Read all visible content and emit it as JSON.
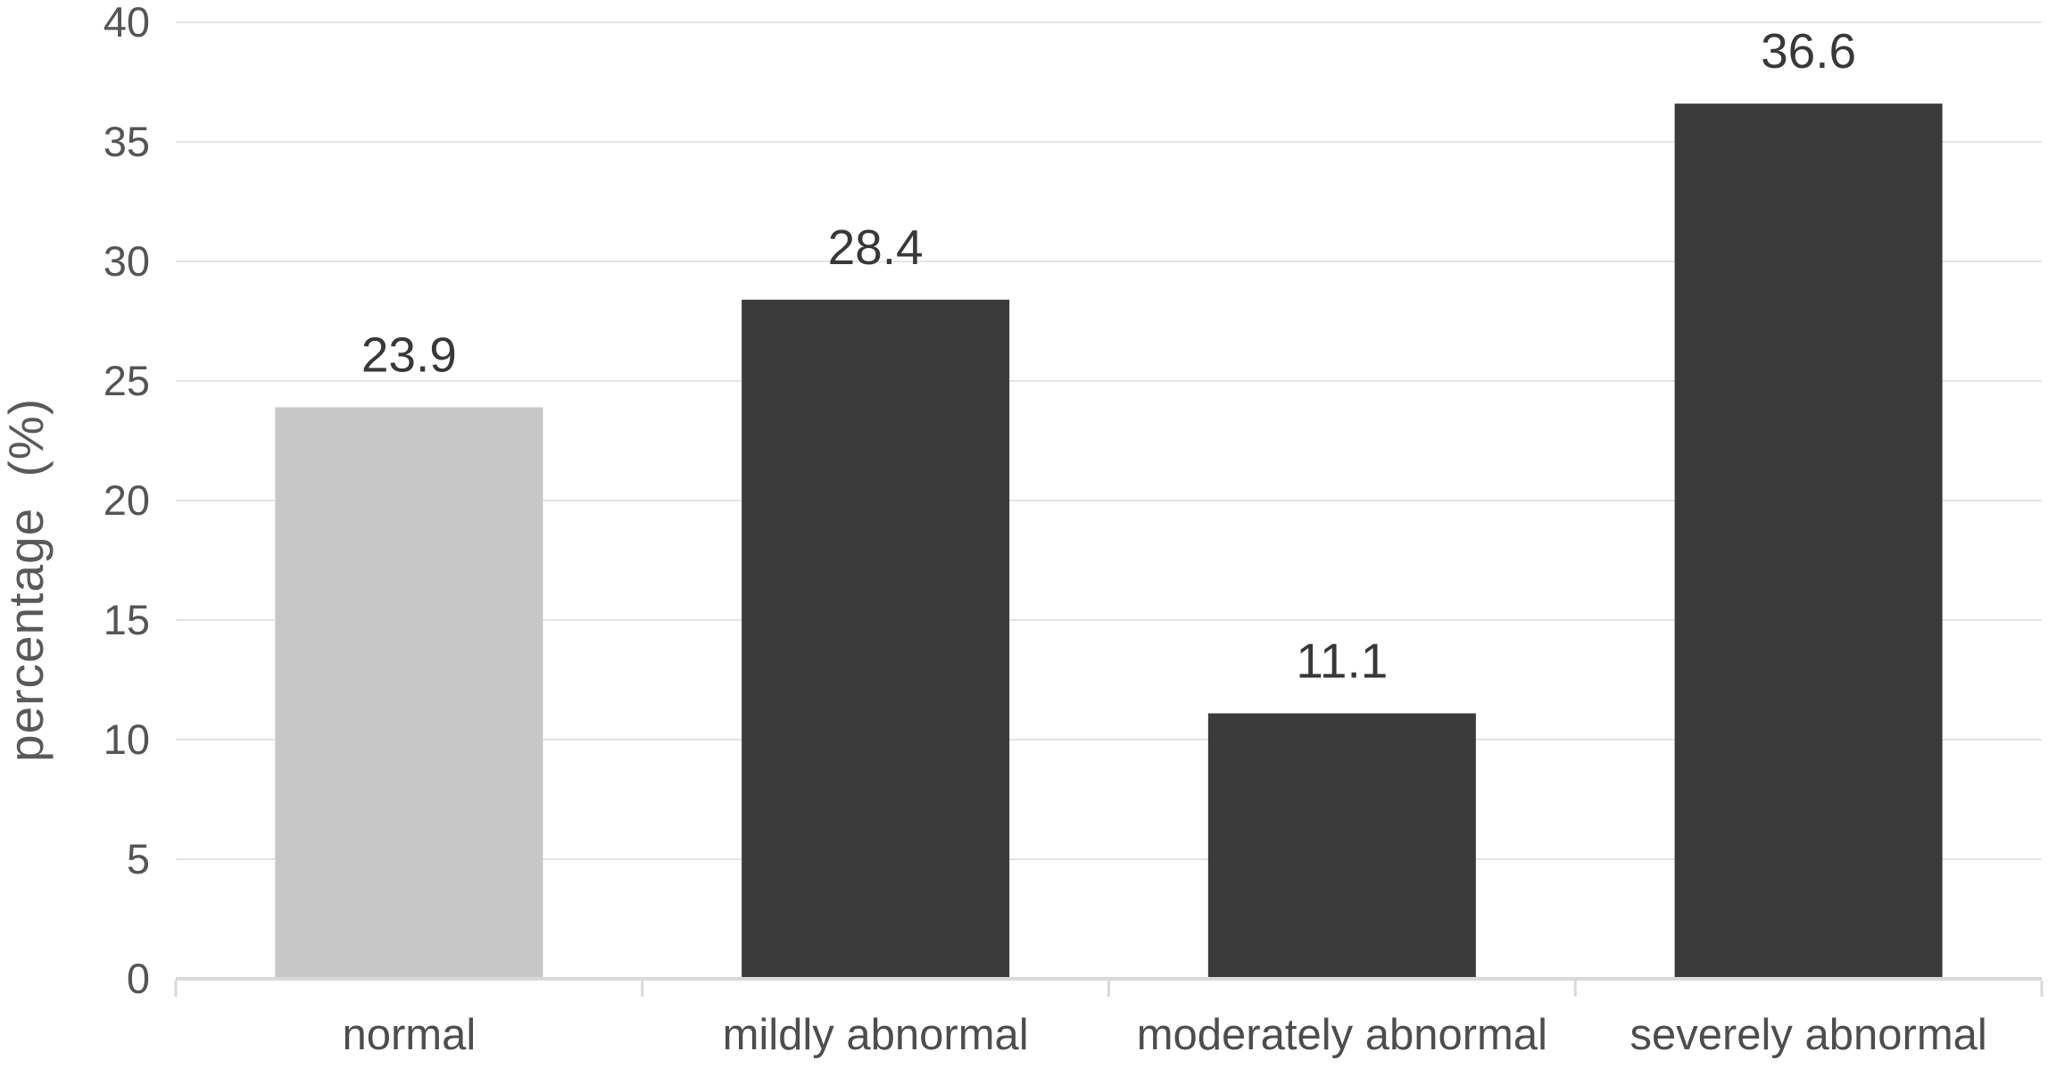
{
  "chart_data": {
    "type": "bar",
    "categories": [
      "normal",
      "mildly abnormal",
      "moderately abnormal",
      "severely abnormal"
    ],
    "values": [
      23.9,
      28.4,
      11.1,
      36.6
    ],
    "value_labels": [
      "23.9",
      "28.4",
      "11.1",
      "36.6"
    ],
    "title": "",
    "xlabel": "",
    "ylabel": "percentage (%)",
    "ylim": [
      0,
      40
    ],
    "yticks": [
      0,
      5,
      10,
      15,
      20,
      25,
      30,
      35,
      40
    ],
    "grid": "horizontal-only",
    "legend": "none",
    "bar_colors": [
      "#c7c7c7",
      "#3b3b3b",
      "#3b3b3b",
      "#3b3b3b"
    ],
    "colors": {
      "bar_normal": "#c7c7c7",
      "bar_abnormal": "#3b3b3b",
      "gridline": "#e4e4e4",
      "axis_line": "#d9d9d9",
      "tick_text": "#555555",
      "category_text": "#4d4d4d",
      "value_text": "#383838",
      "background": "#ffffff"
    }
  }
}
